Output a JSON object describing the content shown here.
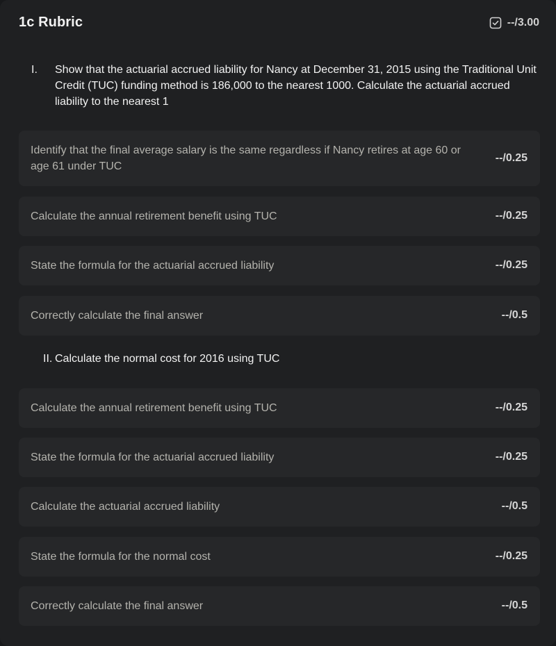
{
  "header": {
    "title": "1c Rubric",
    "total_score": "--/3.00",
    "icon": "checkbox-icon"
  },
  "sections": [
    {
      "number": "I.",
      "text": "Show that the actuarial accrued liability for Nancy at December 31, 2015 using the Traditional Unit Credit (TUC) funding method is 186,000 to the nearest 1000. Calculate the actuarial accrued liability to the nearest 1",
      "items": [
        {
          "text": "Identify that the final average salary is the same regardless if Nancy retires at age 60 or age 61 under TUC",
          "score": "--/0.25"
        },
        {
          "text": "Calculate the annual retirement benefit using TUC",
          "score": "--/0.25"
        },
        {
          "text": "State the formula for the actuarial accrued liability",
          "score": "--/0.25"
        },
        {
          "text": "Correctly calculate the final answer",
          "score": "--/0.5"
        }
      ]
    },
    {
      "number": "II.",
      "text": "Calculate the normal cost for 2016 using TUC",
      "items": [
        {
          "text": "Calculate the annual retirement benefit using TUC",
          "score": "--/0.25"
        },
        {
          "text": "State the formula for the actuarial accrued liability",
          "score": "--/0.25"
        },
        {
          "text": "Calculate the actuarial accrued liability",
          "score": "--/0.5"
        },
        {
          "text": "State the formula for the normal cost",
          "score": "--/0.25"
        },
        {
          "text": "Correctly calculate the final answer",
          "score": "--/0.5"
        }
      ]
    }
  ]
}
